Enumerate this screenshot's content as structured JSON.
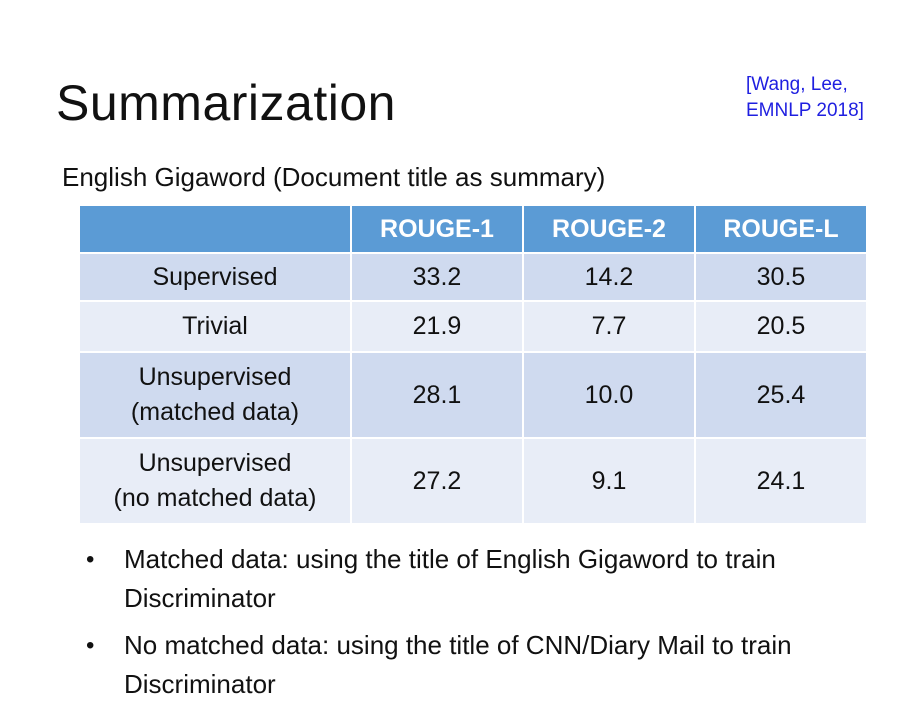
{
  "slide": {
    "title": "Summarization",
    "citation_line1": "[Wang, Lee,",
    "citation_line2": "EMNLP 2018]",
    "subtitle": "English Gigaword (Document title as summary)"
  },
  "table": {
    "headers": [
      "",
      "ROUGE-1",
      "ROUGE-2",
      "ROUGE-L"
    ],
    "rows": [
      {
        "label_line1": "Supervised",
        "label_line2": "",
        "values": [
          "33.2",
          "14.2",
          "30.5"
        ]
      },
      {
        "label_line1": "Trivial",
        "label_line2": "",
        "values": [
          "21.9",
          "7.7",
          "20.5"
        ]
      },
      {
        "label_line1": "Unsupervised",
        "label_line2": "(matched data)",
        "values": [
          "28.1",
          "10.0",
          "25.4"
        ]
      },
      {
        "label_line1": "Unsupervised",
        "label_line2": "(no matched data)",
        "values": [
          "27.2",
          "9.1",
          "24.1"
        ]
      }
    ]
  },
  "bullets": [
    {
      "marker": "•",
      "text": "Matched data: using the title of  English Gigaword to train Discriminator"
    },
    {
      "marker": "•",
      "text": "No matched data: using the title of CNN/Diary Mail to train Discriminator"
    }
  ],
  "colors": {
    "header_bg": "#5b9bd5",
    "row_dark": "#cfdaef",
    "row_light": "#e8edf7",
    "citation": "#1f1fe0"
  }
}
